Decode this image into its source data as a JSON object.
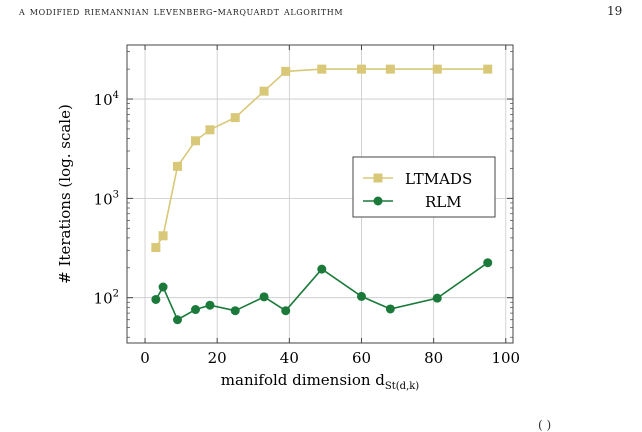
{
  "page": {
    "running_header": "A MODIFIED RIEMANNIAN LEVENBERG-MARQUARDT ALGORITHM",
    "page_number": "19",
    "footer_fragment": "(  )"
  },
  "chart_data": {
    "type": "line",
    "title": "",
    "xlabel": "manifold dimension d",
    "xlabel_subscript": "St(d,k)",
    "ylabel": "# Iterations (log. scale)",
    "xlim": [
      -5,
      102
    ],
    "ylim": [
      35,
      35000
    ],
    "yscale": "log",
    "grid": true,
    "legend_position": "right-middle",
    "x_ticks": [
      0,
      20,
      40,
      60,
      80,
      100
    ],
    "y_ticks": [
      {
        "value": 100,
        "base": "10",
        "exp": "2"
      },
      {
        "value": 1000,
        "base": "10",
        "exp": "3"
      },
      {
        "value": 10000,
        "base": "10",
        "exp": "4"
      }
    ],
    "series": [
      {
        "name": "LTMADS",
        "color": "#d8c878",
        "marker": "square",
        "x": [
          3,
          5,
          9,
          14,
          18,
          25,
          33,
          39,
          49,
          60,
          68,
          81,
          95
        ],
        "y": [
          320,
          420,
          2100,
          3800,
          4900,
          6500,
          12000,
          19000,
          20000,
          20000,
          20000,
          20000,
          20000
        ]
      },
      {
        "name": "RLM",
        "color": "#1b7a3a",
        "marker": "circle",
        "x": [
          3,
          5,
          9,
          14,
          18,
          25,
          33,
          39,
          49,
          60,
          68,
          81,
          95
        ],
        "y": [
          96,
          128,
          60,
          76,
          84,
          74,
          102,
          74,
          194,
          103,
          77,
          99,
          225
        ]
      }
    ]
  }
}
